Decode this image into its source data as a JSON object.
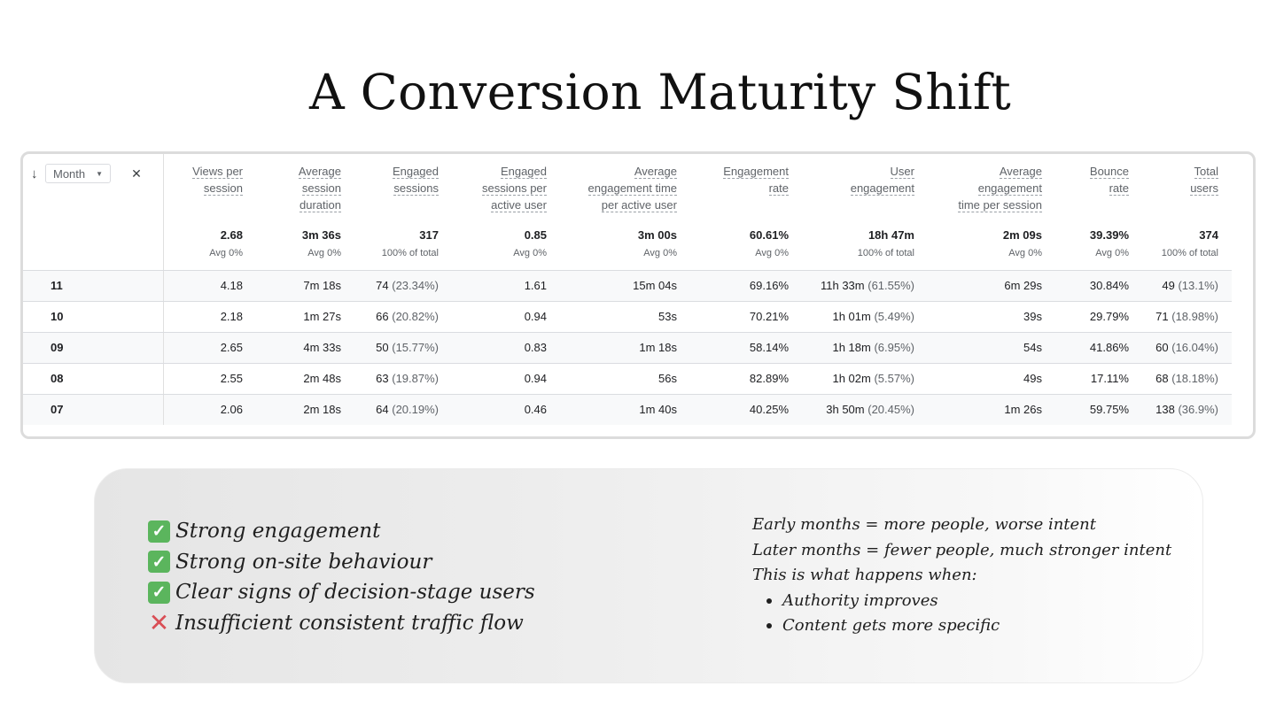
{
  "title": "A Conversion Maturity Shift",
  "table": {
    "dimension_label": "Month",
    "sort_icon": "arrow-down-icon",
    "headers": [
      [
        "Views per",
        "session"
      ],
      [
        "Average",
        "session",
        "duration"
      ],
      [
        "Engaged",
        "sessions"
      ],
      [
        "Engaged",
        "sessions per",
        "active user"
      ],
      [
        "Average",
        "engagement time",
        "per active user"
      ],
      [
        "Engagement",
        "rate"
      ],
      [
        "User",
        "engagement"
      ],
      [
        "Average",
        "engagement",
        "time per session"
      ],
      [
        "Bounce",
        "rate"
      ],
      [
        "Total",
        "users"
      ]
    ],
    "totals": [
      {
        "value": "2.68",
        "sub": "Avg 0%"
      },
      {
        "value": "3m 36s",
        "sub": "Avg 0%"
      },
      {
        "value": "317",
        "sub": "100% of total"
      },
      {
        "value": "0.85",
        "sub": "Avg 0%"
      },
      {
        "value": "3m 00s",
        "sub": "Avg 0%"
      },
      {
        "value": "60.61%",
        "sub": "Avg 0%"
      },
      {
        "value": "18h 47m",
        "sub": "100% of total"
      },
      {
        "value": "2m 09s",
        "sub": "Avg 0%"
      },
      {
        "value": "39.39%",
        "sub": "Avg 0%"
      },
      {
        "value": "374",
        "sub": "100% of total"
      }
    ],
    "rows": [
      {
        "month": "11",
        "cells": [
          {
            "v": "4.18"
          },
          {
            "v": "7m 18s"
          },
          {
            "v": "74",
            "p": "(23.34%)"
          },
          {
            "v": "1.61"
          },
          {
            "v": "15m 04s"
          },
          {
            "v": "69.16%"
          },
          {
            "v": "11h 33m",
            "p": "(61.55%)"
          },
          {
            "v": "6m 29s"
          },
          {
            "v": "30.84%"
          },
          {
            "v": "49",
            "p": "(13.1%)"
          }
        ]
      },
      {
        "month": "10",
        "cells": [
          {
            "v": "2.18"
          },
          {
            "v": "1m 27s"
          },
          {
            "v": "66",
            "p": "(20.82%)"
          },
          {
            "v": "0.94"
          },
          {
            "v": "53s"
          },
          {
            "v": "70.21%"
          },
          {
            "v": "1h 01m",
            "p": "(5.49%)"
          },
          {
            "v": "39s"
          },
          {
            "v": "29.79%"
          },
          {
            "v": "71",
            "p": "(18.98%)"
          }
        ]
      },
      {
        "month": "09",
        "cells": [
          {
            "v": "2.65"
          },
          {
            "v": "4m 33s"
          },
          {
            "v": "50",
            "p": "(15.77%)"
          },
          {
            "v": "0.83"
          },
          {
            "v": "1m 18s"
          },
          {
            "v": "58.14%"
          },
          {
            "v": "1h 18m",
            "p": "(6.95%)"
          },
          {
            "v": "54s"
          },
          {
            "v": "41.86%"
          },
          {
            "v": "60",
            "p": "(16.04%)"
          }
        ]
      },
      {
        "month": "08",
        "cells": [
          {
            "v": "2.55"
          },
          {
            "v": "2m 48s"
          },
          {
            "v": "63",
            "p": "(19.87%)"
          },
          {
            "v": "0.94"
          },
          {
            "v": "56s"
          },
          {
            "v": "82.89%"
          },
          {
            "v": "1h 02m",
            "p": "(5.57%)"
          },
          {
            "v": "49s"
          },
          {
            "v": "17.11%"
          },
          {
            "v": "68",
            "p": "(18.18%)"
          }
        ]
      },
      {
        "month": "07",
        "cells": [
          {
            "v": "2.06"
          },
          {
            "v": "2m 18s"
          },
          {
            "v": "64",
            "p": "(20.19%)"
          },
          {
            "v": "0.46"
          },
          {
            "v": "1m 40s"
          },
          {
            "v": "40.25%"
          },
          {
            "v": "3h 50m",
            "p": "(20.45%)"
          },
          {
            "v": "1m 26s"
          },
          {
            "v": "59.75%"
          },
          {
            "v": "138",
            "p": "(36.9%)"
          }
        ]
      }
    ]
  },
  "checklist": [
    {
      "status": "check",
      "icon": "check-mark-icon",
      "text": "Strong engagement"
    },
    {
      "status": "check",
      "icon": "check-mark-icon",
      "text": "Strong on-site behaviour"
    },
    {
      "status": "check",
      "icon": "check-mark-icon",
      "text": "Clear signs of decision-stage users"
    },
    {
      "status": "cross",
      "icon": "cross-mark-icon",
      "text": "Insufficient consistent traffic flow"
    }
  ],
  "notes": {
    "lines": [
      "Early months = more people, worse intent",
      "Later months = fewer people, much stronger intent",
      "This is what happens when:"
    ],
    "bullets": [
      "Authority improves",
      "Content gets more specific"
    ]
  },
  "colors": {
    "check_badge": "#5bb55d",
    "cross": "#d94e55",
    "row_alt": "#f8f9fa"
  }
}
